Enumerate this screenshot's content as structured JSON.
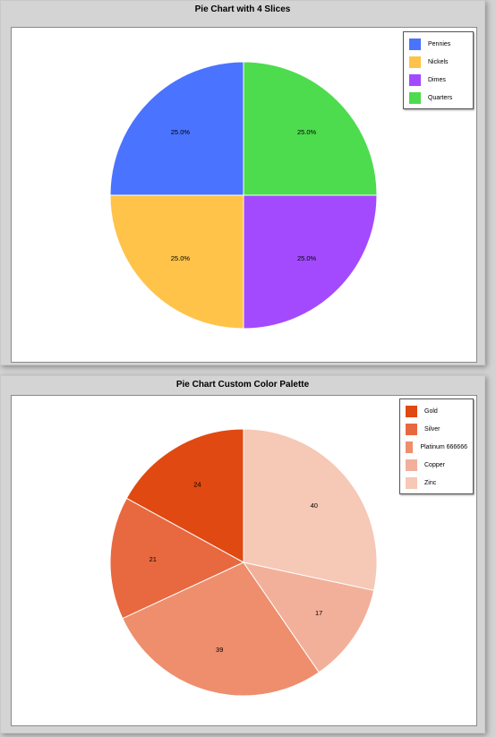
{
  "chart_data": [
    {
      "type": "pie",
      "title": "Pie Chart with 4 Slices",
      "slices": [
        {
          "label": "Pennies",
          "value": 25.0,
          "display": "25.0%",
          "color": "#4a73ff"
        },
        {
          "label": "Nickels",
          "value": 25.0,
          "display": "25.0%",
          "color": "#ffc34a"
        },
        {
          "label": "Dimes",
          "value": 25.0,
          "display": "25.0%",
          "color": "#a34aff"
        },
        {
          "label": "Quarters",
          "value": 25.0,
          "display": "25.0%",
          "color": "#4ddc4d"
        }
      ],
      "legend_position": "top-right"
    },
    {
      "type": "pie",
      "title": "Pie Chart Custom Color Palette",
      "slices": [
        {
          "label": "Gold",
          "value": 24,
          "display": "24",
          "color": "#e04911"
        },
        {
          "label": "Silver",
          "value": 21,
          "display": "21",
          "color": "#e8693f"
        },
        {
          "label": "Platinum 666666",
          "value": 39,
          "display": "39",
          "color": "#ee8e6d"
        },
        {
          "label": "Copper",
          "value": 17,
          "display": "17",
          "color": "#f2b09a"
        },
        {
          "label": "Zinc",
          "value": 40,
          "display": "40",
          "color": "#f6c8b6"
        }
      ],
      "legend_position": "top-right"
    }
  ]
}
